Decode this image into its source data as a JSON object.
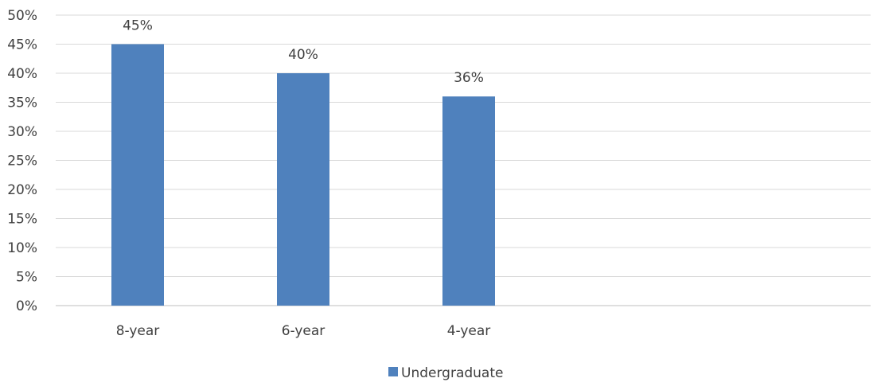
{
  "chart_data": {
    "type": "bar",
    "categories": [
      "8-year",
      "6-year",
      "4-year"
    ],
    "series": [
      {
        "name": "Undergraduate",
        "values": [
          45,
          40,
          36
        ],
        "labels": [
          "45%",
          "40%",
          "36%"
        ],
        "color": "#4f81bd"
      }
    ],
    "y_ticks": [
      0,
      5,
      10,
      15,
      20,
      25,
      30,
      35,
      40,
      45,
      50
    ],
    "y_tick_labels": [
      "0%",
      "5%",
      "10%",
      "15%",
      "20%",
      "25%",
      "30%",
      "35%",
      "40%",
      "45%",
      "50%"
    ],
    "ylim": [
      0,
      50
    ],
    "y_unit": "%",
    "grid": true,
    "legend_position": "bottom"
  }
}
